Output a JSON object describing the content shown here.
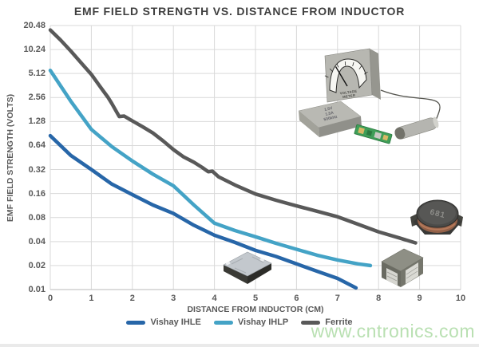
{
  "watermark": "www.cntronics.com",
  "chart_data": {
    "type": "line",
    "title": "EMF FIELD STRENGTH VS. DISTANCE FROM INDUCTOR",
    "xlabel": "DISTANCE FROM INDUCTOR (CM)",
    "ylabel": "EMF FIELD STRENGTH (VOLTS)",
    "y_scale": "log2",
    "grid": true,
    "legend_position": "bottom",
    "xlim": [
      0,
      10
    ],
    "ylim": [
      0.01,
      20.48
    ],
    "x_ticks": [
      0,
      1,
      2,
      3,
      4,
      5,
      6,
      7,
      8,
      9,
      10
    ],
    "y_tick_labels": [
      "20.48",
      "10.24",
      "5.12",
      "2.56",
      "1.28",
      "0.64",
      "0.32",
      "0.16",
      "0.08",
      "0.04",
      "0.02",
      "0.01"
    ],
    "grid_color": "#d9d9d9",
    "axis_line_color": "#c6c6c6",
    "series": [
      {
        "name": "Vishay IHLE",
        "color": "#2766a8",
        "points": [
          [
            0,
            0.85
          ],
          [
            0.5,
            0.48
          ],
          [
            1,
            0.32
          ],
          [
            1.5,
            0.21
          ],
          [
            2,
            0.155
          ],
          [
            2.5,
            0.115
          ],
          [
            3,
            0.09
          ],
          [
            3.5,
            0.064
          ],
          [
            4,
            0.048
          ],
          [
            4.5,
            0.039
          ],
          [
            5,
            0.031
          ],
          [
            5.5,
            0.026
          ],
          [
            6,
            0.021
          ],
          [
            6.5,
            0.017
          ],
          [
            7,
            0.0138
          ],
          [
            7.45,
            0.0105
          ]
        ]
      },
      {
        "name": "Vishay IHLP",
        "color": "#44a3c6",
        "points": [
          [
            0,
            5.6
          ],
          [
            0.5,
            2.3
          ],
          [
            1,
            1.02
          ],
          [
            1.5,
            0.62
          ],
          [
            2,
            0.41
          ],
          [
            2.5,
            0.28
          ],
          [
            3,
            0.2
          ],
          [
            3.5,
            0.115
          ],
          [
            4,
            0.068
          ],
          [
            4.5,
            0.055
          ],
          [
            5,
            0.046
          ],
          [
            5.5,
            0.038
          ],
          [
            6,
            0.032
          ],
          [
            6.5,
            0.027
          ],
          [
            7,
            0.0235
          ],
          [
            7.5,
            0.021
          ],
          [
            7.8,
            0.02
          ]
        ]
      },
      {
        "name": "Ferrite",
        "color": "#595959",
        "points": [
          [
            0,
            18
          ],
          [
            0.25,
            13.5
          ],
          [
            0.5,
            9.8
          ],
          [
            0.75,
            7.0
          ],
          [
            1,
            5.0
          ],
          [
            1.25,
            3.3
          ],
          [
            1.4,
            2.6
          ],
          [
            1.5,
            2.15
          ],
          [
            1.6,
            1.75
          ],
          [
            1.68,
            1.48
          ],
          [
            1.8,
            1.5
          ],
          [
            1.95,
            1.35
          ],
          [
            2.25,
            1.1
          ],
          [
            2.5,
            0.92
          ],
          [
            2.75,
            0.73
          ],
          [
            3,
            0.57
          ],
          [
            3.25,
            0.46
          ],
          [
            3.5,
            0.395
          ],
          [
            3.7,
            0.34
          ],
          [
            3.85,
            0.3
          ],
          [
            3.95,
            0.305
          ],
          [
            4.1,
            0.26
          ],
          [
            4.5,
            0.205
          ],
          [
            5,
            0.158
          ],
          [
            5.5,
            0.132
          ],
          [
            6,
            0.112
          ],
          [
            6.5,
            0.096
          ],
          [
            7,
            0.082
          ],
          [
            7.5,
            0.066
          ],
          [
            8,
            0.053
          ],
          [
            8.5,
            0.0445
          ],
          [
            8.9,
            0.0385
          ]
        ]
      }
    ]
  },
  "illustration": {
    "meter_line1": "VOLTAGE",
    "meter_line2": "METER",
    "source_line1": "1.5V",
    "source_line2": "1.5A",
    "source_line3": "500kHz",
    "ferrite_marking": "681"
  }
}
